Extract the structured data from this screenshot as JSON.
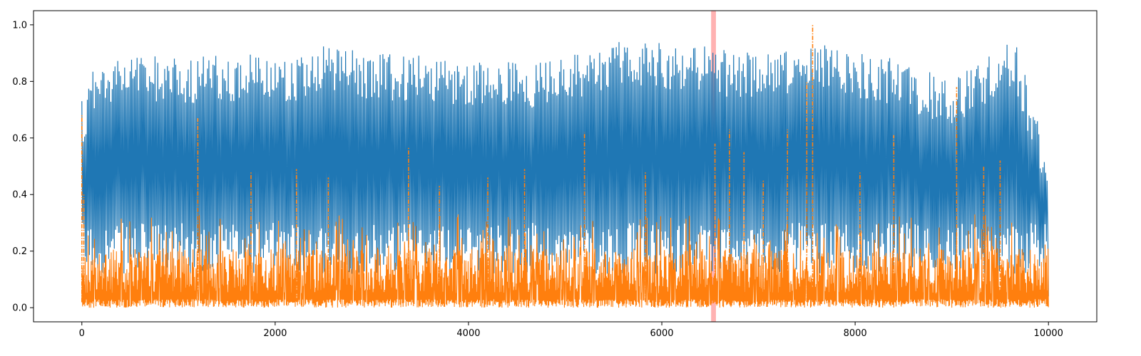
{
  "chart_data": {
    "type": "line",
    "title": "",
    "xlabel": "",
    "ylabel": "",
    "xlim": [
      -500,
      10500
    ],
    "ylim": [
      -0.05,
      1.05
    ],
    "x_ticks": [
      0,
      2000,
      4000,
      6000,
      8000,
      10000
    ],
    "x_tick_labels": [
      "0",
      "2000",
      "4000",
      "6000",
      "8000",
      "10000"
    ],
    "y_ticks": [
      0.0,
      0.2,
      0.4,
      0.6,
      0.8,
      1.0
    ],
    "y_tick_labels": [
      "0.0",
      "0.2",
      "0.4",
      "0.6",
      "0.8",
      "1.0"
    ],
    "grid": false,
    "legend": "none",
    "highlight_region": {
      "x_start": 6510,
      "x_end": 6560,
      "color": "#ff0000",
      "opacity": 0.3
    },
    "series": [
      {
        "color": "#1f77b4",
        "style": "solid",
        "x_range": [
          0,
          10000
        ],
        "approx_band": [
          0.12,
          0.95
        ],
        "sample_peaks_x": [
          0,
          120,
          560,
          1000,
          2300,
          2350,
          3100,
          4100,
          4600,
          5600,
          6380,
          6700,
          7800,
          8400,
          9000,
          9650,
          9990
        ],
        "sample_peaks_y": [
          0.73,
          0.92,
          0.95,
          0.94,
          0.95,
          0.98,
          0.95,
          0.93,
          0.92,
          1.0,
          0.98,
          0.96,
          0.98,
          0.93,
          0.86,
          1.0,
          0.6
        ]
      },
      {
        "color": "#ff7f0e",
        "style": "dashdot",
        "x_range": [
          0,
          10000
        ],
        "approx_band": [
          0.0,
          0.2
        ],
        "spikes_x": [
          0,
          20,
          1200,
          1750,
          2220,
          2550,
          3380,
          3700,
          4200,
          4580,
          5200,
          5830,
          6550,
          6700,
          6850,
          7050,
          7300,
          7500,
          7560,
          8050,
          8400,
          9050,
          9330,
          9500,
          9990
        ],
        "spikes_y": [
          0.68,
          0.4,
          0.67,
          0.48,
          0.49,
          0.46,
          0.57,
          0.43,
          0.46,
          0.49,
          0.62,
          0.48,
          0.58,
          0.63,
          0.55,
          0.45,
          0.63,
          0.8,
          1.0,
          0.48,
          0.61,
          0.78,
          0.5,
          0.52,
          0.0
        ]
      }
    ]
  }
}
